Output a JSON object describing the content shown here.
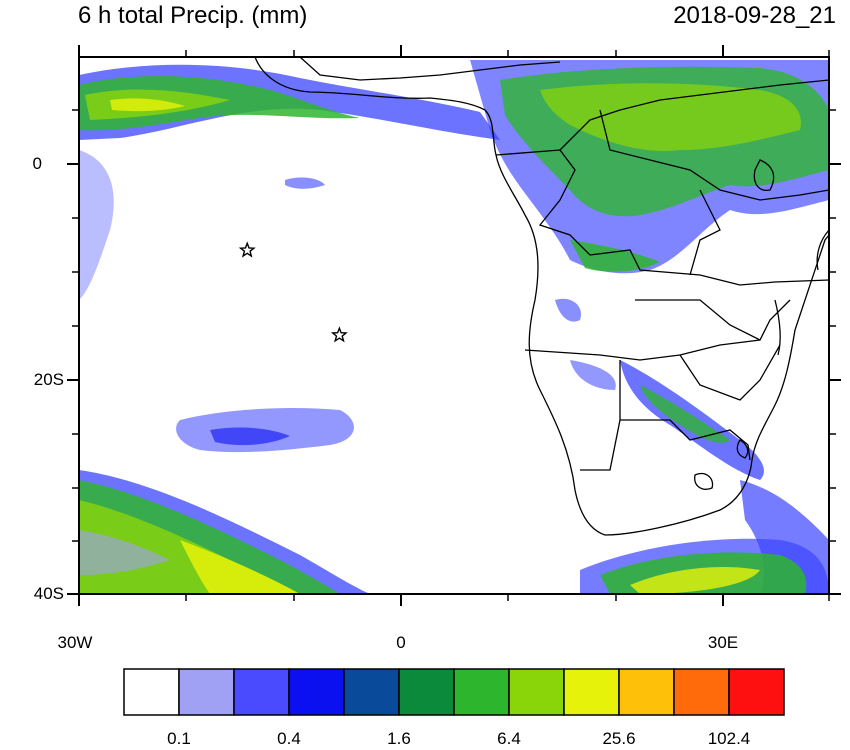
{
  "title": {
    "left": "6 h total Precip. (mm)",
    "right": "2018-09-28_21"
  },
  "axes": {
    "lat_labels": [
      "0",
      "20S",
      "40S"
    ],
    "lon_labels": [
      "30W",
      "0",
      "30E"
    ],
    "lat_range": [
      -40,
      10
    ],
    "lon_range": [
      -30,
      40
    ]
  },
  "colorbar": {
    "labels": [
      "0.1",
      "0.4",
      "1.6",
      "6.4",
      "25.6",
      "102.4"
    ],
    "colors": [
      "#ffffff",
      "#a0a0f5",
      "#4a4aff",
      "#0a10f0",
      "#0a4a9a",
      "#0a8a3a",
      "#2eb52e",
      "#8ad40a",
      "#e6f20a",
      "#ffc00a",
      "#ff6a0a",
      "#ff1010"
    ]
  },
  "markers": {
    "type": "star",
    "points": [
      {
        "lon": -14.3,
        "lat": -8.0
      },
      {
        "lon": -5.7,
        "lat": -15.9
      }
    ]
  }
}
